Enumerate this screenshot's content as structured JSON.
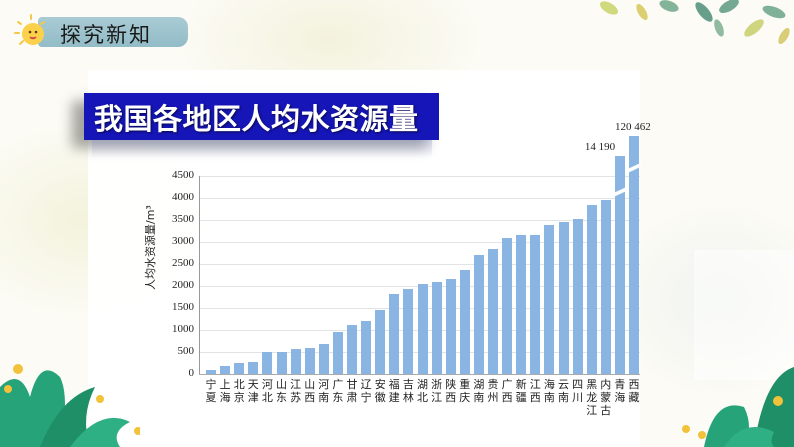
{
  "header": {
    "section_title": "探究新知",
    "icon": "sun-icon"
  },
  "banner": {
    "title": "我国各地区人均水资源量"
  },
  "colors": {
    "bar": "#8ab5e3",
    "banner_bg": "#1515b8",
    "badge_bg": "#9ec3cd"
  },
  "chart_data": {
    "type": "bar",
    "title": "我国各地区人均水资源量",
    "xlabel": "",
    "ylabel": "人均水资源量/m³",
    "ylim": [
      0,
      4500
    ],
    "yticks": [
      0,
      500,
      1000,
      1500,
      2000,
      2500,
      3000,
      3500,
      4000,
      4500
    ],
    "grid": true,
    "legend": null,
    "categories": [
      "宁夏",
      "上海",
      "北京",
      "天津",
      "河北",
      "山东",
      "江苏",
      "山西",
      "河南",
      "广东",
      "甘肃",
      "辽宁",
      "安徽",
      "福建",
      "吉林",
      "湖北",
      "浙江",
      "陕西",
      "重庆",
      "湖南",
      "贵州",
      "广西",
      "新疆",
      "江西",
      "海南",
      "云南",
      "四川",
      "黑龙江",
      "内蒙古",
      "青海",
      "西藏"
    ],
    "values": [
      100,
      190,
      260,
      270,
      490,
      505,
      575,
      580,
      680,
      955,
      1110,
      1205,
      1445,
      1810,
      1925,
      2055,
      2080,
      2170,
      2355,
      2710,
      2850,
      3085,
      3150,
      3170,
      3385,
      3460,
      3530,
      3845,
      3965,
      14190,
      120462
    ],
    "annotations": [
      {
        "category": "青海",
        "text": "14 190",
        "note": "axis break"
      },
      {
        "category": "西藏",
        "text": "120 462",
        "note": "axis break"
      }
    ]
  }
}
